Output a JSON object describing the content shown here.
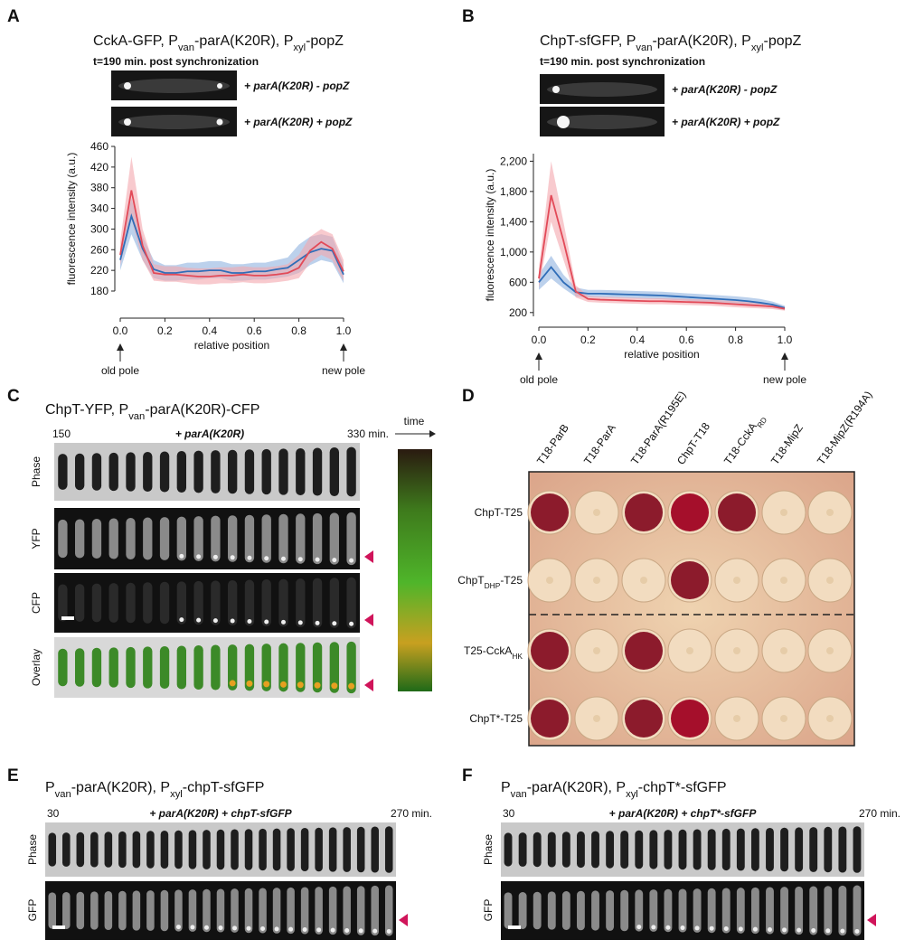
{
  "chart_data": [
    {
      "type": "line",
      "ylabel": "fluorescence intensity (a.u.)",
      "xlabel": "relative position",
      "annotations": [
        "old pole",
        "new pole"
      ],
      "x": [
        0,
        0.05,
        0.1,
        0.15,
        0.2,
        0.25,
        0.3,
        0.35,
        0.4,
        0.45,
        0.5,
        0.55,
        0.6,
        0.65,
        0.7,
        0.75,
        0.8,
        0.85,
        0.9,
        0.95,
        1.0
      ],
      "xlim": [
        0,
        1
      ],
      "xticks": [
        {
          "value": 0,
          "label": "0.0"
        },
        0.2,
        0.4,
        0.6,
        0.8,
        {
          "value": 1,
          "label": "1.0"
        }
      ],
      "ylim": [
        180,
        460
      ],
      "yticks": [
        180,
        220,
        260,
        300,
        340,
        380,
        420,
        460
      ],
      "series": [
        {
          "name": "+ parA(K20R) - popZ",
          "color": "#2f6db8",
          "band_color": "#8fb2df",
          "values": [
            240,
            325,
            262,
            222,
            215,
            215,
            218,
            218,
            220,
            220,
            215,
            215,
            218,
            218,
            222,
            225,
            240,
            255,
            262,
            258,
            212
          ],
          "lower": [
            220,
            290,
            240,
            205,
            200,
            200,
            202,
            202,
            205,
            205,
            200,
            200,
            202,
            202,
            205,
            208,
            215,
            230,
            240,
            235,
            195
          ],
          "upper": [
            260,
            360,
            285,
            240,
            230,
            230,
            235,
            235,
            238,
            238,
            232,
            232,
            235,
            235,
            240,
            245,
            270,
            285,
            290,
            285,
            230
          ]
        },
        {
          "name": "+ parA(K20R) + popZ",
          "color": "#e24a58",
          "band_color": "#f3a6ad",
          "values": [
            250,
            375,
            268,
            215,
            212,
            212,
            210,
            208,
            208,
            210,
            210,
            212,
            210,
            210,
            212,
            215,
            225,
            258,
            275,
            262,
            218
          ],
          "lower": [
            230,
            320,
            240,
            200,
            198,
            198,
            195,
            193,
            193,
            195,
            195,
            197,
            195,
            195,
            197,
            200,
            205,
            235,
            250,
            240,
            200
          ],
          "upper": [
            275,
            440,
            300,
            232,
            228,
            228,
            225,
            224,
            224,
            226,
            226,
            228,
            226,
            226,
            228,
            232,
            250,
            285,
            300,
            290,
            240
          ]
        }
      ]
    },
    {
      "type": "line",
      "ylabel": "fluorescence intensity (a.u.)",
      "xlabel": "relative position",
      "annotations": [
        "old pole",
        "new pole"
      ],
      "x": [
        0,
        0.05,
        0.1,
        0.15,
        0.2,
        0.25,
        0.3,
        0.35,
        0.4,
        0.45,
        0.5,
        0.55,
        0.6,
        0.65,
        0.7,
        0.75,
        0.8,
        0.85,
        0.9,
        0.95,
        1.0
      ],
      "xlim": [
        0,
        1
      ],
      "xticks": [
        {
          "value": 0,
          "label": "0.0"
        },
        0.2,
        0.4,
        0.6,
        0.8,
        {
          "value": 1,
          "label": "1.0"
        }
      ],
      "ylim": [
        150,
        2300
      ],
      "yticks": [
        200,
        600,
        {
          "value": 1000,
          "label": "1,000"
        },
        {
          "value": 1400,
          "label": "1,400"
        },
        {
          "value": 1800,
          "label": "1,800"
        },
        {
          "value": 2200,
          "label": "2,200"
        }
      ],
      "series": [
        {
          "name": "+ parA(K20R) - popZ",
          "color": "#2f6db8",
          "band_color": "#8fb2df",
          "values": [
            600,
            800,
            600,
            470,
            450,
            450,
            445,
            440,
            435,
            430,
            425,
            415,
            405,
            395,
            385,
            375,
            365,
            350,
            330,
            305,
            260
          ],
          "lower": [
            500,
            650,
            520,
            410,
            400,
            400,
            395,
            390,
            385,
            380,
            375,
            365,
            355,
            345,
            335,
            325,
            315,
            300,
            285,
            265,
            230
          ],
          "upper": [
            700,
            950,
            700,
            530,
            500,
            500,
            495,
            490,
            485,
            480,
            475,
            465,
            455,
            445,
            435,
            425,
            415,
            400,
            380,
            345,
            290
          ]
        },
        {
          "name": "+ parA(K20R) + popZ",
          "color": "#e24a58",
          "band_color": "#f3a6ad",
          "values": [
            650,
            1750,
            1150,
            480,
            380,
            370,
            365,
            360,
            355,
            350,
            350,
            345,
            340,
            335,
            330,
            320,
            310,
            300,
            290,
            280,
            250
          ],
          "lower": [
            520,
            1400,
            900,
            400,
            340,
            330,
            325,
            320,
            315,
            310,
            310,
            305,
            300,
            295,
            290,
            280,
            270,
            262,
            255,
            245,
            225
          ],
          "upper": [
            780,
            2200,
            1400,
            560,
            420,
            410,
            405,
            400,
            395,
            390,
            390,
            385,
            380,
            375,
            370,
            360,
            350,
            340,
            325,
            315,
            275
          ]
        }
      ]
    }
  ],
  "panel_a": {
    "letter": "A",
    "title_parts": [
      "CckA-GFP, P",
      "van",
      "-parA(K20R), P",
      "xyl",
      "-popZ"
    ],
    "subtitle": "t=190 min. post synchronization"
  },
  "panel_b": {
    "letter": "B",
    "title_parts": [
      "ChpT-sfGFP, P",
      "van",
      "-parA(K20R), P",
      "xyl",
      "-popZ"
    ],
    "subtitle": "t=190 min. post synchronization"
  },
  "panel_c": {
    "letter": "C",
    "title_parts": [
      "ChpT-YFP, P",
      "van",
      "-parA(K20R)-CFP"
    ],
    "start": "150",
    "end": "330 min.",
    "condition": "+ parA(K20R)",
    "rows": [
      "Phase",
      "YFP",
      "CFP",
      "Overlay"
    ],
    "kymograph": "time"
  },
  "panel_d": {
    "letter": "D",
    "columns": [
      [
        "T18-ParB"
      ],
      [
        "T18-ParA"
      ],
      [
        "T18-ParA(R195E)"
      ],
      [
        "ChpT-T18"
      ],
      [
        "T18-CckA",
        "RD"
      ],
      [
        "T18-MipZ"
      ],
      [
        "T18-MipZ(R194A)"
      ]
    ],
    "rows": [
      [
        "ChpT-T25"
      ],
      [
        "ChpT",
        "DHP",
        "-T25"
      ],
      [
        "T25-CckA",
        "HK"
      ],
      [
        "ChpT*-T25"
      ]
    ]
  },
  "panel_e": {
    "letter": "E",
    "title_parts": [
      "P",
      "van",
      "-parA(K20R), P",
      "xyl",
      "-chpT-sfGFP"
    ],
    "start": "30",
    "end": "270 min.",
    "condition": "+ parA(K20R) + chpT-sfGFP",
    "rows": [
      "Phase",
      "GFP"
    ]
  },
  "panel_f": {
    "letter": "F",
    "title_parts": [
      "P",
      "van",
      "-parA(K20R), P",
      "xyl",
      "-chpT*-sfGFP"
    ],
    "start": "30",
    "end": "270 min.",
    "condition": "+ parA(K20R) + chpT*-sfGFP",
    "rows": [
      "Phase",
      "GFP"
    ]
  }
}
